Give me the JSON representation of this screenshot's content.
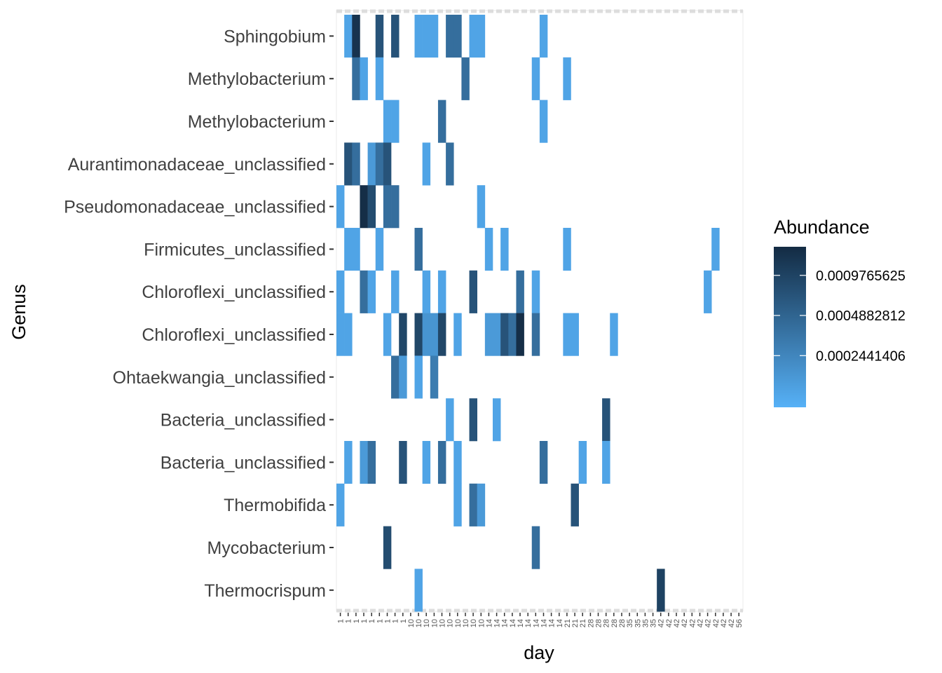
{
  "chart_data": {
    "type": "heatmap",
    "xlabel": "day",
    "ylabel": "Genus",
    "legend": {
      "title": "Abundance",
      "position": "right",
      "ticks": [
        "0.0009765625",
        "0.0004882812",
        "0.0002441406"
      ],
      "tick_values": [
        0.0009765625,
        0.0004882812,
        0.0002441406
      ],
      "scale": "log2",
      "range": [
        0.0001,
        0.0016
      ],
      "low_color": "#56B1F7",
      "high_color": "#132B43"
    },
    "day_columns": 52,
    "x_tick_labels": [
      "1",
      "1",
      "1",
      "1",
      "1",
      "1",
      "1",
      "1",
      "1",
      "10",
      "10",
      "10",
      "10",
      "10",
      "10",
      "10",
      "10",
      "10",
      "10",
      "14",
      "14",
      "14",
      "14",
      "14",
      "14",
      "14",
      "14",
      "14",
      "14",
      "21",
      "21",
      "21",
      "28",
      "28",
      "28",
      "28",
      "28",
      "35",
      "35",
      "35",
      "35",
      "42",
      "42",
      "42",
      "42",
      "42",
      "42",
      "42",
      "42",
      "42",
      "42",
      "56"
    ],
    "rows": [
      "Sphingobium",
      "Methylobacterium",
      "Methylobacterium",
      "Aurantimonadaceae_unclassified",
      "Pseudomonadaceae_unclassified",
      "Firmicutes_unclassified",
      "Chloroflexi_unclassified",
      "Chloroflexi_unclassified",
      "Ohtaekwangia_unclassified",
      "Bacteria_unclassified",
      "Bacteria_unclassified",
      "Thermobifida",
      "Mycobacterium",
      "Thermocrispum"
    ],
    "cells": [
      {
        "row": 0,
        "col": 1,
        "v": 0.00013
      },
      {
        "row": 0,
        "col": 2,
        "v": 0.00135
      },
      {
        "row": 0,
        "col": 5,
        "v": 0.0007
      },
      {
        "row": 0,
        "col": 7,
        "v": 0.0007
      },
      {
        "row": 0,
        "col": 10,
        "v": 0.00013
      },
      {
        "row": 0,
        "col": 11,
        "v": 0.00013
      },
      {
        "row": 0,
        "col": 12,
        "v": 0.00013
      },
      {
        "row": 0,
        "col": 14,
        "v": 0.0004
      },
      {
        "row": 0,
        "col": 15,
        "v": 0.0004
      },
      {
        "row": 0,
        "col": 17,
        "v": 0.00013
      },
      {
        "row": 0,
        "col": 18,
        "v": 0.00013
      },
      {
        "row": 0,
        "col": 26,
        "v": 0.00013
      },
      {
        "row": 1,
        "col": 2,
        "v": 0.0004
      },
      {
        "row": 1,
        "col": 3,
        "v": 0.00013
      },
      {
        "row": 1,
        "col": 5,
        "v": 0.00013
      },
      {
        "row": 1,
        "col": 16,
        "v": 0.0004
      },
      {
        "row": 1,
        "col": 25,
        "v": 0.00013
      },
      {
        "row": 1,
        "col": 29,
        "v": 0.00013
      },
      {
        "row": 2,
        "col": 6,
        "v": 0.00013
      },
      {
        "row": 2,
        "col": 7,
        "v": 0.00013
      },
      {
        "row": 2,
        "col": 13,
        "v": 0.0004
      },
      {
        "row": 2,
        "col": 26,
        "v": 0.00013
      },
      {
        "row": 3,
        "col": 1,
        "v": 0.0007
      },
      {
        "row": 3,
        "col": 2,
        "v": 0.0004
      },
      {
        "row": 3,
        "col": 4,
        "v": 0.00016
      },
      {
        "row": 3,
        "col": 5,
        "v": 0.0004
      },
      {
        "row": 3,
        "col": 6,
        "v": 0.0007
      },
      {
        "row": 3,
        "col": 11,
        "v": 0.00013
      },
      {
        "row": 3,
        "col": 14,
        "v": 0.0004
      },
      {
        "row": 4,
        "col": 0,
        "v": 0.00013
      },
      {
        "row": 4,
        "col": 3,
        "v": 0.0015
      },
      {
        "row": 4,
        "col": 4,
        "v": 0.0008
      },
      {
        "row": 4,
        "col": 6,
        "v": 0.0004
      },
      {
        "row": 4,
        "col": 7,
        "v": 0.0004
      },
      {
        "row": 4,
        "col": 18,
        "v": 0.00013
      },
      {
        "row": 5,
        "col": 1,
        "v": 0.00013
      },
      {
        "row": 5,
        "col": 2,
        "v": 0.00013
      },
      {
        "row": 5,
        "col": 5,
        "v": 0.00013
      },
      {
        "row": 5,
        "col": 10,
        "v": 0.0004
      },
      {
        "row": 5,
        "col": 19,
        "v": 0.00013
      },
      {
        "row": 5,
        "col": 21,
        "v": 0.00013
      },
      {
        "row": 5,
        "col": 29,
        "v": 0.00013
      },
      {
        "row": 5,
        "col": 48,
        "v": 0.00013
      },
      {
        "row": 6,
        "col": 0,
        "v": 0.00013
      },
      {
        "row": 6,
        "col": 3,
        "v": 0.0004
      },
      {
        "row": 6,
        "col": 4,
        "v": 0.00013
      },
      {
        "row": 6,
        "col": 7,
        "v": 0.00013
      },
      {
        "row": 6,
        "col": 11,
        "v": 0.00013
      },
      {
        "row": 6,
        "col": 13,
        "v": 0.00013
      },
      {
        "row": 6,
        "col": 17,
        "v": 0.0007
      },
      {
        "row": 6,
        "col": 23,
        "v": 0.0004
      },
      {
        "row": 6,
        "col": 25,
        "v": 0.00013
      },
      {
        "row": 6,
        "col": 47,
        "v": 0.00013
      },
      {
        "row": 7,
        "col": 0,
        "v": 0.00013
      },
      {
        "row": 7,
        "col": 1,
        "v": 0.00013
      },
      {
        "row": 7,
        "col": 6,
        "v": 0.00013
      },
      {
        "row": 7,
        "col": 8,
        "v": 0.0009
      },
      {
        "row": 7,
        "col": 10,
        "v": 0.0009
      },
      {
        "row": 7,
        "col": 11,
        "v": 0.00018
      },
      {
        "row": 7,
        "col": 12,
        "v": 0.00018
      },
      {
        "row": 7,
        "col": 13,
        "v": 0.0009
      },
      {
        "row": 7,
        "col": 15,
        "v": 0.00013
      },
      {
        "row": 7,
        "col": 19,
        "v": 0.00016
      },
      {
        "row": 7,
        "col": 20,
        "v": 0.00016
      },
      {
        "row": 7,
        "col": 21,
        "v": 0.0007
      },
      {
        "row": 7,
        "col": 22,
        "v": 0.0004
      },
      {
        "row": 7,
        "col": 23,
        "v": 0.0015
      },
      {
        "row": 7,
        "col": 25,
        "v": 0.0004
      },
      {
        "row": 7,
        "col": 29,
        "v": 0.00013
      },
      {
        "row": 7,
        "col": 30,
        "v": 0.00013
      },
      {
        "row": 7,
        "col": 35,
        "v": 0.00013
      },
      {
        "row": 8,
        "col": 7,
        "v": 0.0004
      },
      {
        "row": 8,
        "col": 8,
        "v": 0.00016
      },
      {
        "row": 8,
        "col": 10,
        "v": 0.00013
      },
      {
        "row": 8,
        "col": 12,
        "v": 0.0003
      },
      {
        "row": 9,
        "col": 14,
        "v": 0.00013
      },
      {
        "row": 9,
        "col": 17,
        "v": 0.0007
      },
      {
        "row": 9,
        "col": 20,
        "v": 0.00013
      },
      {
        "row": 9,
        "col": 34,
        "v": 0.0007
      },
      {
        "row": 10,
        "col": 1,
        "v": 0.00013
      },
      {
        "row": 10,
        "col": 3,
        "v": 0.00016
      },
      {
        "row": 10,
        "col": 4,
        "v": 0.0004
      },
      {
        "row": 10,
        "col": 8,
        "v": 0.0007
      },
      {
        "row": 10,
        "col": 11,
        "v": 0.00013
      },
      {
        "row": 10,
        "col": 13,
        "v": 0.0004
      },
      {
        "row": 10,
        "col": 15,
        "v": 0.00013
      },
      {
        "row": 10,
        "col": 26,
        "v": 0.0004
      },
      {
        "row": 10,
        "col": 31,
        "v": 0.00013
      },
      {
        "row": 10,
        "col": 34,
        "v": 0.00013
      },
      {
        "row": 11,
        "col": 0,
        "v": 0.00013
      },
      {
        "row": 11,
        "col": 15,
        "v": 0.00013
      },
      {
        "row": 11,
        "col": 17,
        "v": 0.0004
      },
      {
        "row": 11,
        "col": 18,
        "v": 0.00016
      },
      {
        "row": 11,
        "col": 30,
        "v": 0.0007
      },
      {
        "row": 12,
        "col": 6,
        "v": 0.0008
      },
      {
        "row": 12,
        "col": 25,
        "v": 0.0004
      },
      {
        "row": 13,
        "col": 10,
        "v": 0.00013
      },
      {
        "row": 13,
        "col": 41,
        "v": 0.001
      }
    ]
  }
}
